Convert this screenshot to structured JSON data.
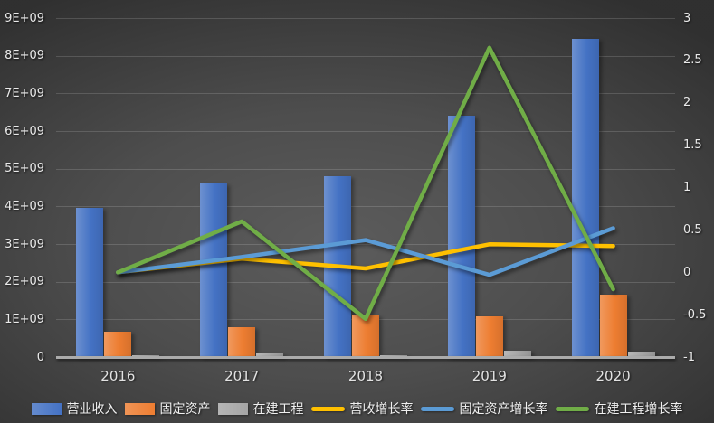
{
  "chart_data": {
    "type": "combo-bar-line",
    "title": "",
    "categories": [
      "2016",
      "2017",
      "2018",
      "2019",
      "2020"
    ],
    "series": [
      {
        "id": "revenue",
        "name": "营业收入",
        "type": "bar",
        "axis": "left",
        "color": "#4472C4",
        "values": [
          3950000000,
          4600000000,
          4800000000,
          6400000000,
          8450000000
        ]
      },
      {
        "id": "fixed-assets",
        "name": "固定资产",
        "type": "bar",
        "axis": "left",
        "color": "#ED7D31",
        "values": [
          680000000,
          800000000,
          1100000000,
          1070000000,
          1650000000
        ]
      },
      {
        "id": "construction-in-progress",
        "name": "在建工程",
        "type": "bar",
        "axis": "left",
        "color": "#A5A5A5",
        "values": [
          60000000,
          100000000,
          50000000,
          180000000,
          145000000
        ]
      },
      {
        "id": "revenue-growth",
        "name": "营收增长率",
        "type": "line",
        "axis": "right",
        "color": "#FFC000",
        "values": [
          0,
          0.16,
          0.045,
          0.33,
          0.31
        ]
      },
      {
        "id": "fixed-assets-growth",
        "name": "固定资产增长率",
        "type": "line",
        "axis": "right",
        "color": "#5B9BD5",
        "values": [
          0,
          0.18,
          0.38,
          -0.03,
          0.52
        ]
      },
      {
        "id": "construction-growth",
        "name": "在建工程增长率",
        "type": "line",
        "axis": "right",
        "color": "#70AD47",
        "values": [
          0,
          0.6,
          -0.55,
          2.65,
          -0.2
        ]
      }
    ],
    "left_axis": {
      "min": 0,
      "max": 9000000000,
      "tick_labels": [
        "9E+09",
        "8E+09",
        "7E+09",
        "6E+09",
        "5E+09",
        "4E+09",
        "3E+09",
        "2E+09",
        "1E+09",
        "0"
      ]
    },
    "right_axis": {
      "min": -1,
      "max": 3,
      "tick_labels": [
        "3",
        "2.5",
        "2",
        "1.5",
        "1",
        "0.5",
        "0",
        "-0.5",
        "-1"
      ]
    },
    "grid": true,
    "legend_position": "bottom"
  }
}
